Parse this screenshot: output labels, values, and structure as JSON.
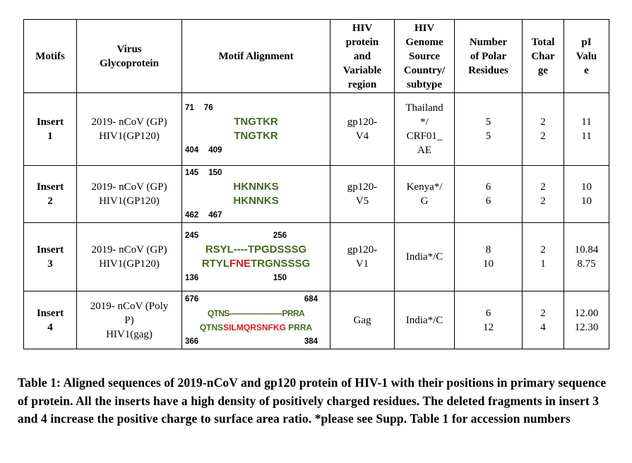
{
  "table": {
    "headers": {
      "motifs": "Motifs",
      "virus_glycoprotein": [
        "Virus",
        "Glycoprotein"
      ],
      "motif_alignment": "Motif Alignment",
      "hiv_protein": [
        "HIV",
        "protein",
        "and",
        "Variable",
        "region"
      ],
      "hiv_genome": [
        "HIV",
        "Genome",
        "Source",
        "Country/",
        "subtype"
      ],
      "polar": [
        "Number",
        "of Polar",
        "Residues"
      ],
      "charge": [
        "Total",
        "Char",
        "ge"
      ],
      "pi": [
        "pI",
        "Valu",
        "e"
      ]
    },
    "rows": [
      {
        "motif": [
          "Insert",
          "1"
        ],
        "glyco": [
          "2019- nCoV (GP)",
          "HIV1(GP120)"
        ],
        "top_start": "71",
        "top_end": "76",
        "seq1": "TNGTKR",
        "seq2": "TNGTKR",
        "bottom_start": "404",
        "bottom_end": "409",
        "hiv_region": [
          "gp120-",
          "V4"
        ],
        "country": [
          "Thailand",
          "*/",
          "CRF01_",
          "AE"
        ],
        "polar": [
          "5",
          "5"
        ],
        "charge": [
          "2",
          "2"
        ],
        "pi": [
          "11",
          "11"
        ]
      },
      {
        "motif": [
          "Insert",
          "2"
        ],
        "glyco": [
          "2019- nCoV (GP)",
          "HIV1(GP120)"
        ],
        "top_start": "145",
        "top_end": "150",
        "seq1": "HKNNKS",
        "seq2": "HKNNKS",
        "bottom_start": "462",
        "bottom_end": "467",
        "hiv_region": [
          "gp120-",
          "V5"
        ],
        "country": [
          "Kenya*/",
          "G"
        ],
        "polar": [
          "6",
          "6"
        ],
        "charge": [
          "2",
          "2"
        ],
        "pi": [
          "10",
          "10"
        ]
      },
      {
        "motif": [
          "Insert",
          "3"
        ],
        "glyco": [
          "2019- nCoV (GP)",
          "HIV1(GP120)"
        ],
        "top_start": "245",
        "top_end": "256",
        "seq1": "RSYL----TPGDSSSG",
        "seq2_a": "RTYL",
        "seq2_red": "FNE",
        "seq2_b": "TRGNSSSG",
        "bottom_start": "136",
        "bottom_end": "150",
        "hiv_region": [
          "gp120-",
          "V1"
        ],
        "country": [
          "India*/C"
        ],
        "polar": [
          "8",
          "10"
        ],
        "charge": [
          "2",
          "1"
        ],
        "pi": [
          "10.84",
          "8.75"
        ]
      },
      {
        "motif": [
          "Insert",
          "4"
        ],
        "glyco": [
          "2019- nCoV (Poly",
          "P)",
          "HIV1(gag)"
        ],
        "top_start": "676",
        "top_end": "684",
        "seq1": "QTNS----------------------PRRA",
        "seq2_a": "QTNS",
        "seq2_red": "SILMQRSNFKG",
        "seq2_b": " PRRA",
        "bottom_start": "366",
        "bottom_end": "384",
        "hiv_region": [
          "Gag"
        ],
        "country": [
          "India*/C"
        ],
        "polar": [
          "6",
          "12"
        ],
        "charge": [
          "2",
          "4"
        ],
        "pi": [
          "12.00",
          "12.30"
        ]
      }
    ]
  },
  "caption": "Table 1: Aligned sequences of 2019-nCoV and gp120 protein of HIV-1 with their positions in primary sequence of protein. All the inserts have a high density of positively charged residues. The deleted fragments in insert 3 and 4 increase the positive charge to surface area ratio. *please see Supp. Table 1 for accession numbers",
  "colors": {
    "match": "#3f6b1f",
    "insertion": "#d21d1d"
  }
}
